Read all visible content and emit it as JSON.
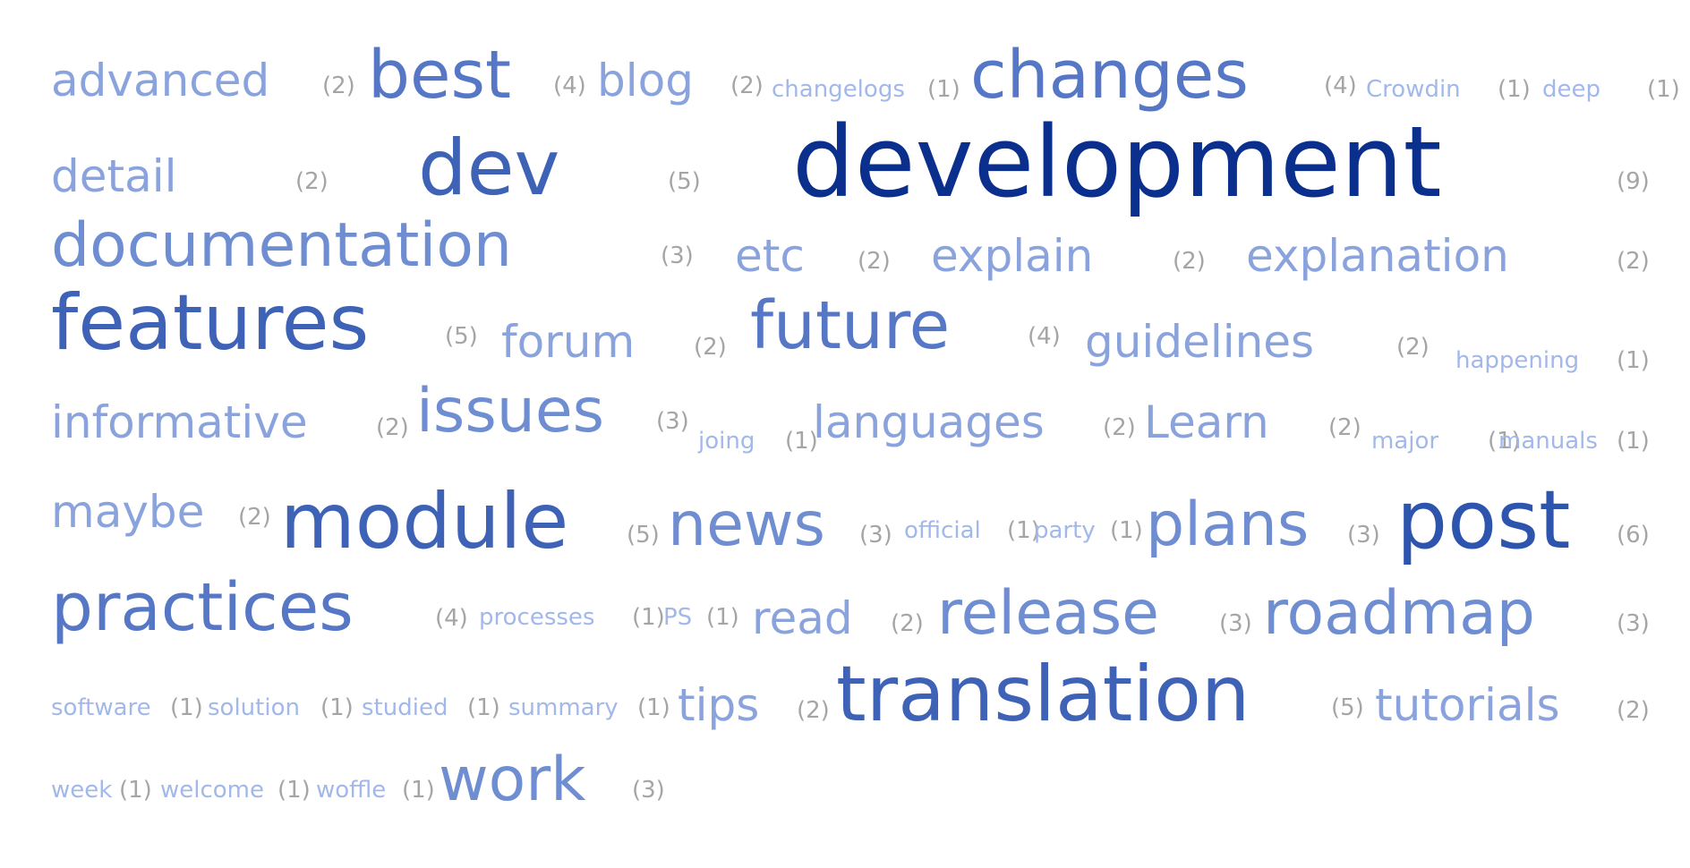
{
  "tags": [
    {
      "word": "advanced",
      "count": "(2)"
    },
    {
      "word": "best",
      "count": "(4)"
    },
    {
      "word": "blog",
      "count": "(2)"
    },
    {
      "word": "changelogs",
      "count": "(1)"
    },
    {
      "word": "changes",
      "count": "(4)"
    },
    {
      "word": "Crowdin",
      "count": "(1)"
    },
    {
      "word": "deep",
      "count": "(1)"
    },
    {
      "word": "detail",
      "count": "(2)"
    },
    {
      "word": "dev",
      "count": "(5)"
    },
    {
      "word": "development",
      "count": "(9)"
    },
    {
      "word": "documentation",
      "count": "(3)"
    },
    {
      "word": "etc",
      "count": "(2)"
    },
    {
      "word": "explain",
      "count": "(2)"
    },
    {
      "word": "explanation",
      "count": "(2)"
    },
    {
      "word": "features",
      "count": "(5)"
    },
    {
      "word": "forum",
      "count": "(2)"
    },
    {
      "word": "future",
      "count": "(4)"
    },
    {
      "word": "guidelines",
      "count": "(2)"
    },
    {
      "word": "happening",
      "count": "(1)"
    },
    {
      "word": "informative",
      "count": "(2)"
    },
    {
      "word": "issues",
      "count": "(3)"
    },
    {
      "word": "joing",
      "count": "(1)"
    },
    {
      "word": "languages",
      "count": "(2)"
    },
    {
      "word": "Learn",
      "count": "(2)"
    },
    {
      "word": "major",
      "count": "(1)"
    },
    {
      "word": "manuals",
      "count": "(1)"
    },
    {
      "word": "maybe",
      "count": "(2)"
    },
    {
      "word": "module",
      "count": "(5)"
    },
    {
      "word": "news",
      "count": "(3)"
    },
    {
      "word": "official",
      "count": "(1)"
    },
    {
      "word": "party",
      "count": "(1)"
    },
    {
      "word": "plans",
      "count": "(3)"
    },
    {
      "word": "post",
      "count": "(6)"
    },
    {
      "word": "practices",
      "count": "(4)"
    },
    {
      "word": "processes",
      "count": "(1)"
    },
    {
      "word": "PS",
      "count": "(1)"
    },
    {
      "word": "read",
      "count": "(2)"
    },
    {
      "word": "release",
      "count": "(3)"
    },
    {
      "word": "roadmap",
      "count": "(3)"
    },
    {
      "word": "software",
      "count": "(1)"
    },
    {
      "word": "solution",
      "count": "(1)"
    },
    {
      "word": "studied",
      "count": "(1)"
    },
    {
      "word": "summary",
      "count": "(1)"
    },
    {
      "word": "tips",
      "count": "(2)"
    },
    {
      "word": "translation",
      "count": "(5)"
    },
    {
      "word": "tutorials",
      "count": "(2)"
    },
    {
      "word": "week",
      "count": "(1)"
    },
    {
      "word": "welcome",
      "count": "(1)"
    },
    {
      "word": "woffle",
      "count": "(1)"
    },
    {
      "word": "work",
      "count": "(3)"
    }
  ],
  "style": {
    "count_color": "#a5a5a5",
    "weight_colors": {
      "1": "#a2b8ea",
      "2": "#8aa3dc",
      "3": "#6f8ed2",
      "4": "#5677c6",
      "5": "#3e62b6",
      "6": "#2e55ad",
      "9": "#0a2f8c"
    }
  }
}
